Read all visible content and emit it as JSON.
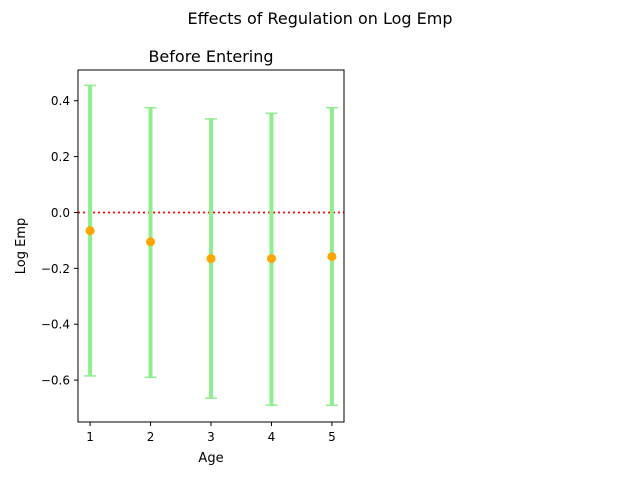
{
  "figure": {
    "suptitle": "Effects of Regulation on Log Emp"
  },
  "colors": {
    "errorbar": "#90ee90",
    "point": "#ffa500",
    "zero_line": "#ff0000",
    "axes": "#000000"
  },
  "chart_data": {
    "type": "scatter",
    "title": "Before Entering",
    "xlabel": "Age",
    "ylabel": "Log Emp",
    "xlim": [
      0.8,
      5.2
    ],
    "ylim": [
      -0.75,
      0.51
    ],
    "grid": false,
    "x_ticks": [
      1,
      2,
      3,
      4,
      5
    ],
    "y_ticks": [
      0.4,
      0.2,
      0.0,
      -0.2,
      -0.4,
      -0.6
    ],
    "y_tick_labels": [
      "0.4",
      "0.2",
      "0.0",
      "−0.2",
      "−0.4",
      "−0.6"
    ],
    "x": [
      1,
      2,
      3,
      4,
      5
    ],
    "values": [
      -0.065,
      -0.105,
      -0.165,
      -0.165,
      -0.158
    ],
    "ci_lower": [
      -0.585,
      -0.59,
      -0.665,
      -0.69,
      -0.69
    ],
    "ci_upper": [
      0.455,
      0.375,
      0.335,
      0.355,
      0.375
    ],
    "reference_line": {
      "y": 0.0,
      "style": "dotted"
    }
  }
}
